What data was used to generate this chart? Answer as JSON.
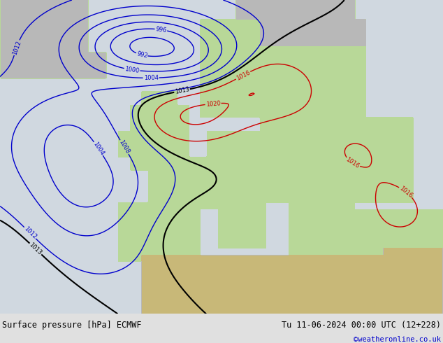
{
  "title_left": "Surface pressure [hPa] ECMWF",
  "title_right": "Tu 11-06-2024 00:00 UTC (12+228)",
  "credit": "©weatheronline.co.uk",
  "ocean_color": "#d0d8e0",
  "land_green_color": "#b8d898",
  "land_gray_color": "#b8b8b8",
  "bottom_bg": "#e0e0e0",
  "credit_color": "#0000cc",
  "title_fontsize": 8.5,
  "lon_min": -30,
  "lon_max": 45,
  "lat_min": 27,
  "lat_max": 75,
  "lev_blue": [
    992,
    996,
    1000,
    1004,
    1008,
    1012
  ],
  "lev_black": [
    1013
  ],
  "lev_red": [
    1016,
    1020
  ]
}
